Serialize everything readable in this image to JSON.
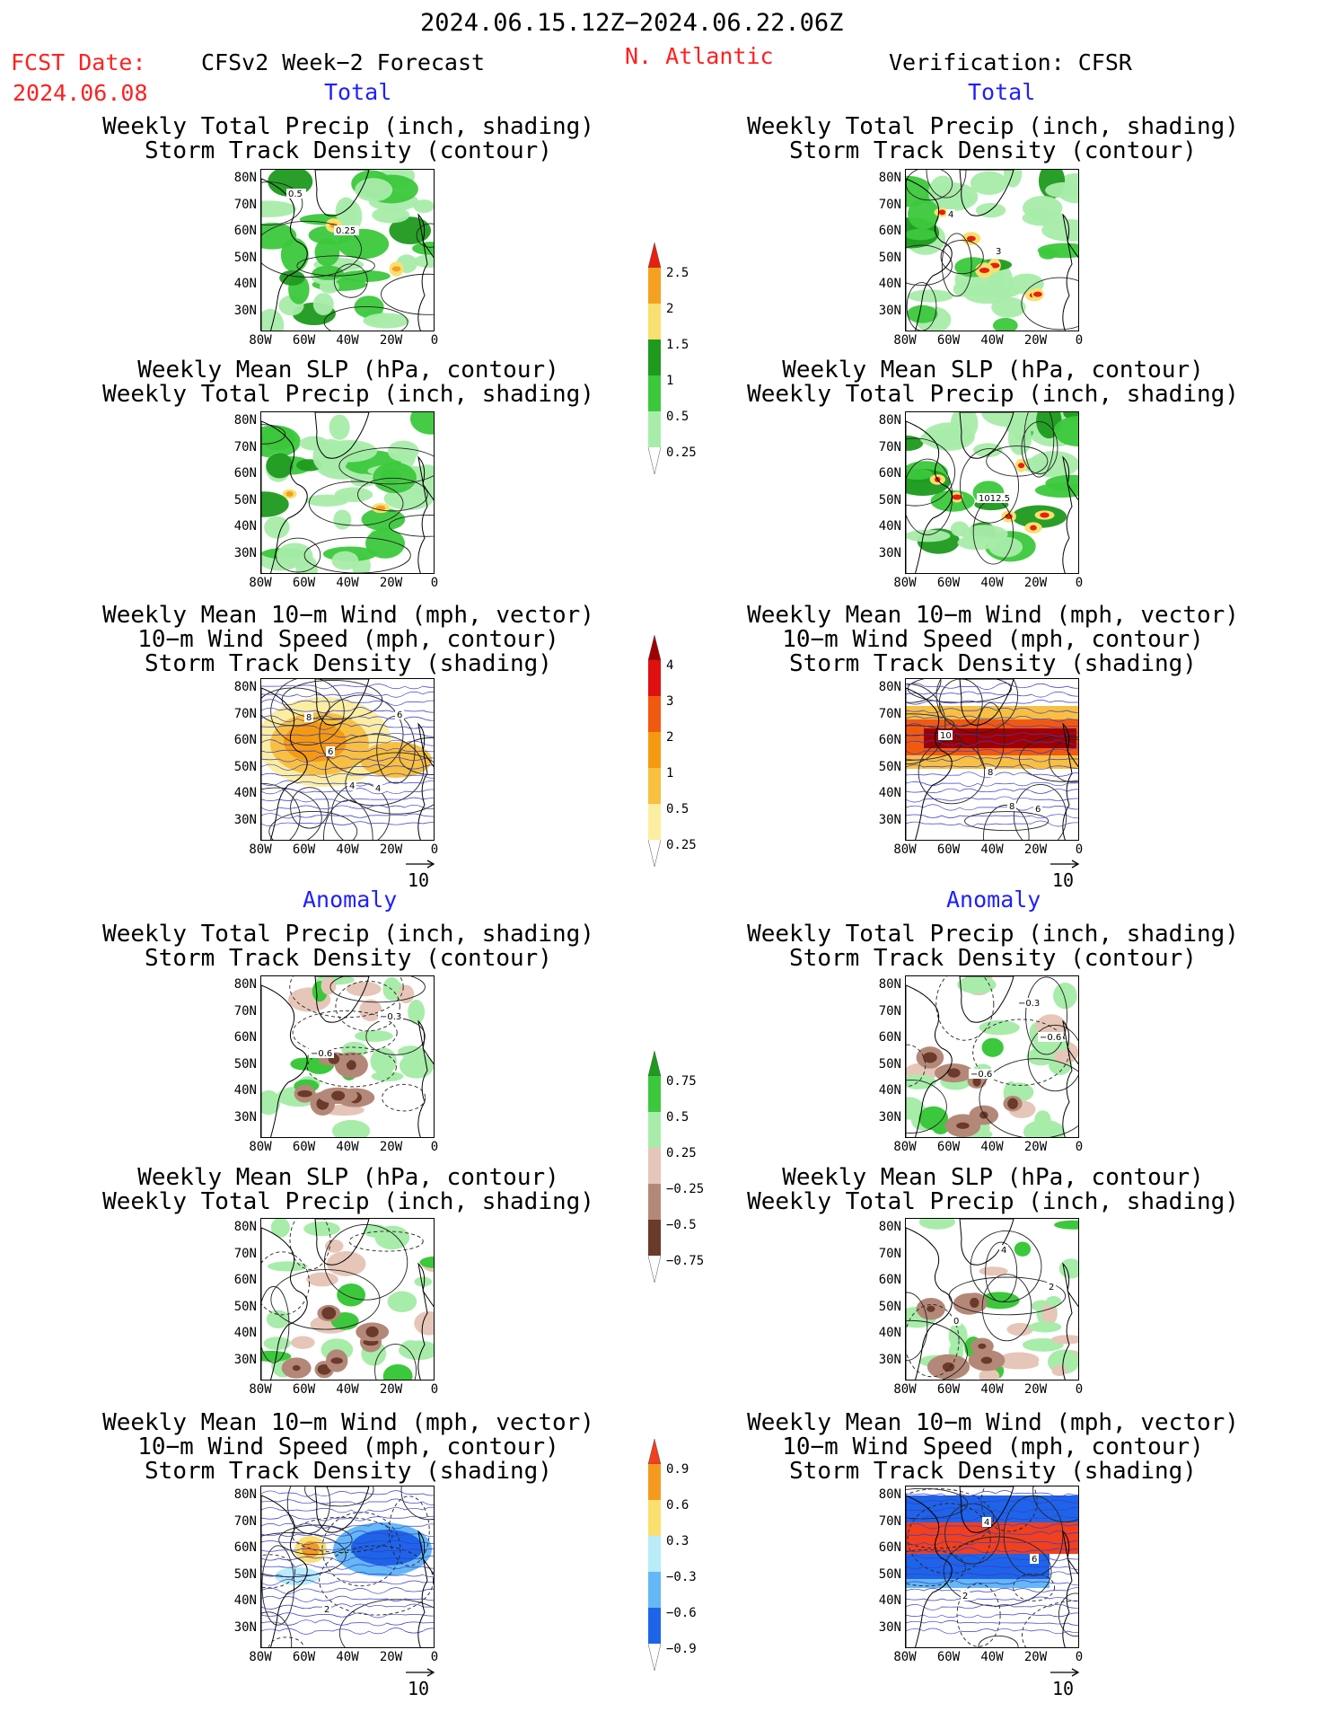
{
  "header": {
    "date_range": "2024.06.15.12Z−2024.06.22.06Z",
    "fcst_label": "FCST Date:",
    "fcst_date": "2024.06.08",
    "model": "CFSv2 Week−2 Forecast",
    "region": "N. Atlantic",
    "verification": "Verification: CFSR"
  },
  "sections": {
    "total": "Total",
    "anomaly": "Anomaly"
  },
  "titles": {
    "precip_track": [
      "Weekly Total Precip (inch, shading)",
      "Storm Track Density (contour)"
    ],
    "slp_precip": [
      "Weekly Mean SLP (hPa, contour)",
      "Weekly Total Precip (inch, shading)"
    ],
    "wind_track": [
      "Weekly Mean 10−m Wind (mph, vector)",
      "10−m Wind Speed (mph, contour)",
      "Storm Track Density (shading)"
    ]
  },
  "axes": {
    "y_ticks": [
      "80N",
      "70N",
      "60N",
      "50N",
      "40N",
      "30N"
    ],
    "x_ticks": [
      "80W",
      "60W",
      "40W",
      "20W",
      "0"
    ]
  },
  "vector_ref": "10",
  "colorbars": {
    "precip_total": {
      "labels": [
        "2.5",
        "2",
        "1.5",
        "1",
        "0.5",
        "0.25"
      ],
      "colors": [
        "#e8200f",
        "#f5a020",
        "#f8e070",
        "#1e9a1e",
        "#3cc83c",
        "#a8ecaa"
      ]
    },
    "track_total": {
      "labels": [
        "4",
        "3",
        "2",
        "1",
        "0.5",
        "0.25"
      ],
      "colors": [
        "#a00000",
        "#e01010",
        "#f05a10",
        "#f59a10",
        "#f8c040",
        "#fbeea0"
      ]
    },
    "precip_anom": {
      "labels": [
        "0.75",
        "0.5",
        "0.25",
        "−0.25",
        "−0.5",
        "−0.75"
      ],
      "colors": [
        "#1e9a1e",
        "#3cc83c",
        "#a8ecaa",
        "#e6c6b8",
        "#b48878",
        "#6a3a2a"
      ]
    },
    "track_anom": {
      "labels": [
        "0.9",
        "0.6",
        "0.3",
        "−0.3",
        "−0.6",
        "−0.9"
      ],
      "colors": [
        "#f0401e",
        "#f59a1e",
        "#fbe070",
        "#b8ecf8",
        "#64b8f5",
        "#1e64e8"
      ]
    }
  },
  "contour_labels": {
    "fc_precip_total": [
      "0.5",
      "0.25"
    ],
    "ver_precip_total": [
      "4",
      "3"
    ],
    "ver_slp_total": [
      "1012.5"
    ],
    "fc_wind_total": [
      "4",
      "6",
      "6",
      "4",
      "8"
    ],
    "ver_wind_total": [
      "8",
      "10",
      "8",
      "6"
    ],
    "fc_precip_anom": [
      "−0.3",
      "−0.6"
    ],
    "ver_precip_anom": [
      "−0.6",
      "−0.6",
      "−0.3"
    ],
    "ver_slp_anom": [
      "0",
      "4",
      "2"
    ],
    "fc_wind_anom": [
      "2"
    ],
    "ver_wind_anom": [
      "4",
      "6",
      "2"
    ]
  }
}
